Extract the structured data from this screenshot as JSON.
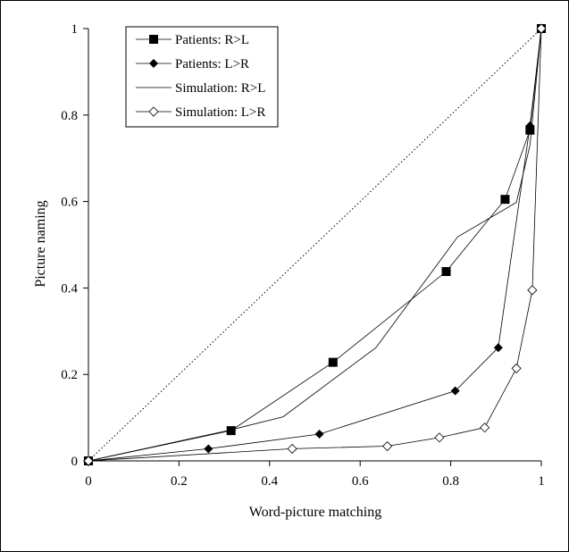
{
  "chart_data": {
    "type": "line",
    "title": "",
    "xlabel": "Word-picture matching",
    "ylabel": "Picture naming",
    "xlim": [
      0,
      1
    ],
    "ylim": [
      0,
      1
    ],
    "x_ticks": [
      "0",
      "0.2",
      "0.4",
      "0.6",
      "0.8",
      "1"
    ],
    "y_ticks": [
      "0",
      "0.2",
      "0.4",
      "0.6",
      "0.8",
      "1"
    ],
    "grid": false,
    "legend_position": "top-left",
    "reference_line": {
      "style": "dotted",
      "points": [
        [
          0,
          0
        ],
        [
          1,
          1
        ]
      ]
    },
    "series": [
      {
        "name": "Patients: R>L",
        "marker": "filled-square",
        "points": [
          [
            0,
            0
          ],
          [
            0.315,
            0.07
          ],
          [
            0.54,
            0.228
          ],
          [
            0.79,
            0.438
          ],
          [
            0.92,
            0.605
          ],
          [
            0.975,
            0.765
          ],
          [
            1.0,
            1.0
          ]
        ]
      },
      {
        "name": "Patients: L>R",
        "marker": "filled-diamond",
        "points": [
          [
            0,
            0
          ],
          [
            0.265,
            0.028
          ],
          [
            0.51,
            0.062
          ],
          [
            0.81,
            0.162
          ],
          [
            0.905,
            0.262
          ],
          [
            0.975,
            0.775
          ],
          [
            1.0,
            1.0
          ]
        ]
      },
      {
        "name": "Simulation: R>L",
        "marker": "none",
        "points": [
          [
            0,
            0
          ],
          [
            0.315,
            0.072
          ],
          [
            0.43,
            0.102
          ],
          [
            0.635,
            0.262
          ],
          [
            0.815,
            0.518
          ],
          [
            0.945,
            0.598
          ],
          [
            0.975,
            0.73
          ],
          [
            1.0,
            1.0
          ]
        ]
      },
      {
        "name": "Simulation: L>R",
        "marker": "open-diamond",
        "points": [
          [
            0,
            0
          ],
          [
            0.45,
            0.028
          ],
          [
            0.66,
            0.034
          ],
          [
            0.775,
            0.054
          ],
          [
            0.875,
            0.077
          ],
          [
            0.945,
            0.214
          ],
          [
            0.98,
            0.395
          ],
          [
            1.0,
            1.0
          ]
        ]
      }
    ]
  }
}
